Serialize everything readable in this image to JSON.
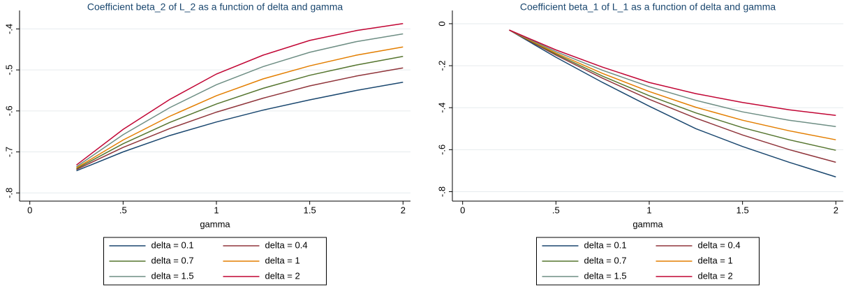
{
  "chart_data": [
    {
      "type": "line",
      "title": "Coefficient beta_2 of L_2 as a function of delta and gamma",
      "xlabel": "gamma",
      "x": [
        0.25,
        0.5,
        0.75,
        1,
        1.25,
        1.5,
        1.75,
        2
      ],
      "xlim": [
        -0.055,
        2.04
      ],
      "xticks": [
        0,
        {
          "value": 0.5,
          "label": ".5"
        },
        1,
        1.5,
        2
      ],
      "ylim": [
        -0.82,
        -0.355
      ],
      "yticks": [
        {
          "value": -0.8,
          "label": "-.8"
        },
        {
          "value": -0.7,
          "label": "-.7"
        },
        {
          "value": -0.6,
          "label": "-.6"
        },
        {
          "value": -0.5,
          "label": "-.5"
        },
        {
          "value": -0.4,
          "label": "-.4"
        }
      ],
      "grid": true,
      "series": [
        {
          "name": "delta = 0.1",
          "color": "#1a476f",
          "values": [
            -0.746,
            -0.7,
            -0.66,
            -0.627,
            -0.598,
            -0.573,
            -0.55,
            -0.53
          ]
        },
        {
          "name": "delta = 0.4",
          "color": "#90353b",
          "values": [
            -0.743,
            -0.689,
            -0.643,
            -0.603,
            -0.569,
            -0.539,
            -0.515,
            -0.495
          ]
        },
        {
          "name": "delta = 0.7",
          "color": "#55752f",
          "values": [
            -0.741,
            -0.68,
            -0.628,
            -0.583,
            -0.545,
            -0.513,
            -0.488,
            -0.467
          ]
        },
        {
          "name": "delta = 1",
          "color": "#e37e00",
          "values": [
            -0.739,
            -0.671,
            -0.613,
            -0.563,
            -0.522,
            -0.49,
            -0.464,
            -0.444
          ]
        },
        {
          "name": "delta = 1.5",
          "color": "#6e8e84",
          "values": [
            -0.736,
            -0.658,
            -0.592,
            -0.536,
            -0.492,
            -0.457,
            -0.431,
            -0.412
          ]
        },
        {
          "name": "delta = 2",
          "color": "#c10534",
          "values": [
            -0.732,
            -0.645,
            -0.572,
            -0.51,
            -0.464,
            -0.428,
            -0.404,
            -0.387
          ]
        }
      ]
    },
    {
      "type": "line",
      "title": "Coefficient beta_1 of L_1 as a function of delta and gamma",
      "xlabel": "gamma",
      "x": [
        0.25,
        0.5,
        0.75,
        1,
        1.25,
        1.5,
        1.75,
        2
      ],
      "xlim": [
        -0.055,
        2.04
      ],
      "xticks": [
        0,
        {
          "value": 0.5,
          "label": ".5"
        },
        1,
        1.5,
        2
      ],
      "ylim": [
        -0.845,
        0.063
      ],
      "yticks": [
        {
          "value": -0.8,
          "label": "-.8"
        },
        {
          "value": -0.6,
          "label": "-.6"
        },
        {
          "value": -0.4,
          "label": "-.4"
        },
        {
          "value": -0.2,
          "label": "-.2"
        },
        0
      ],
      "grid": true,
      "series": [
        {
          "name": "delta = 0.1",
          "color": "#1a476f",
          "values": [
            -0.03,
            -0.16,
            -0.28,
            -0.393,
            -0.5,
            -0.585,
            -0.66,
            -0.73
          ]
        },
        {
          "name": "delta = 0.4",
          "color": "#90353b",
          "values": [
            -0.03,
            -0.15,
            -0.26,
            -0.36,
            -0.45,
            -0.53,
            -0.6,
            -0.66
          ]
        },
        {
          "name": "delta = 0.7",
          "color": "#55752f",
          "values": [
            -0.03,
            -0.145,
            -0.25,
            -0.343,
            -0.425,
            -0.495,
            -0.553,
            -0.603
          ]
        },
        {
          "name": "delta = 1",
          "color": "#e37e00",
          "values": [
            -0.03,
            -0.14,
            -0.237,
            -0.323,
            -0.398,
            -0.46,
            -0.51,
            -0.553
          ]
        },
        {
          "name": "delta = 1.5",
          "color": "#6e8e84",
          "values": [
            -0.03,
            -0.133,
            -0.222,
            -0.3,
            -0.365,
            -0.42,
            -0.46,
            -0.49
          ]
        },
        {
          "name": "delta = 2",
          "color": "#c10534",
          "values": [
            -0.03,
            -0.125,
            -0.207,
            -0.28,
            -0.333,
            -0.375,
            -0.41,
            -0.437
          ]
        }
      ]
    }
  ]
}
